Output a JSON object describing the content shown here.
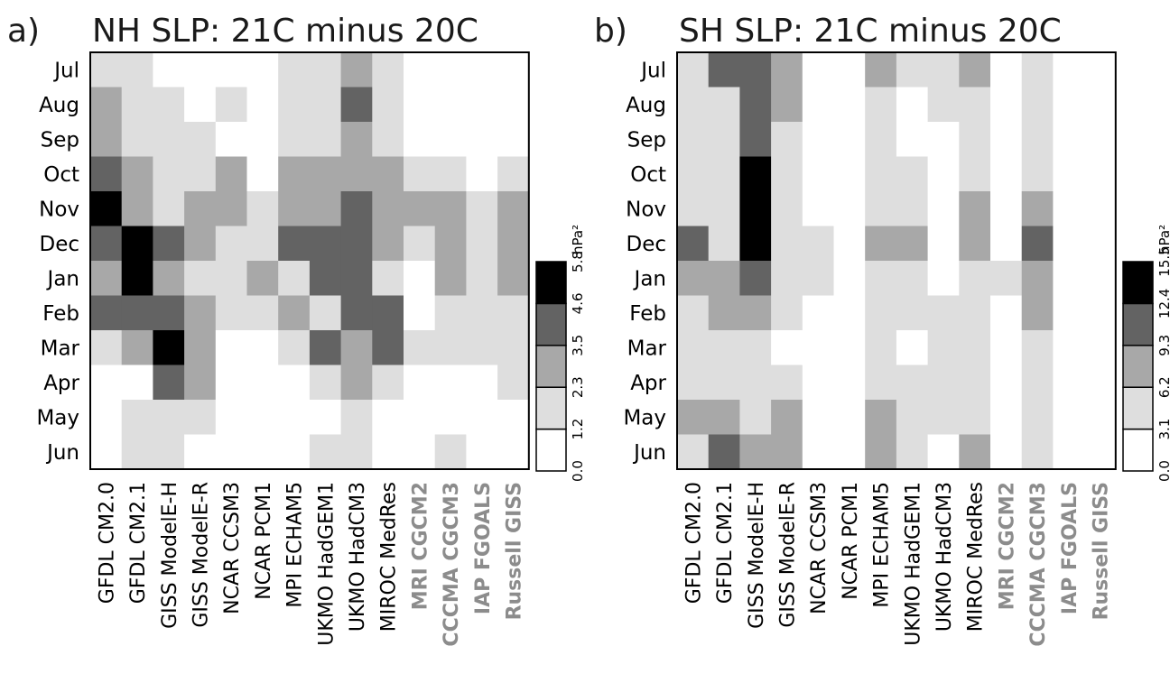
{
  "chart_data": [
    {
      "type": "heatmap",
      "panel_label": "a)",
      "title": "NH SLP: 21C minus 20C",
      "months": [
        "Jul",
        "Aug",
        "Sep",
        "Oct",
        "Nov",
        "Dec",
        "Jan",
        "Feb",
        "Mar",
        "Apr",
        "May",
        "Jun"
      ],
      "models": [
        "GFDL CM2.0",
        "GFDL CM2.1",
        "GISS ModelE-H",
        "GISS ModelE-R",
        "NCAR CCSM3",
        "NCAR PCM1",
        "MPI ECHAM5",
        "UKMO HadGEM1",
        "UKMO HadCM3",
        "MIROC MedRes",
        "MRI CGCM2",
        "CCCMA CGCM3",
        "IAP FGOALS",
        "Russell GISS"
      ],
      "highlighted_models": [
        "MRI CGCM2",
        "CCCMA CGCM3",
        "IAP FGOALS",
        "Russell GISS"
      ],
      "levels": [
        [
          1,
          1,
          0,
          0,
          0,
          0,
          1,
          1,
          2,
          1,
          0,
          0,
          0,
          0
        ],
        [
          2,
          1,
          1,
          0,
          1,
          0,
          1,
          1,
          3,
          1,
          0,
          0,
          0,
          0
        ],
        [
          2,
          1,
          1,
          1,
          0,
          0,
          1,
          1,
          2,
          1,
          0,
          0,
          0,
          0
        ],
        [
          3,
          2,
          1,
          1,
          2,
          0,
          2,
          2,
          2,
          2,
          1,
          1,
          0,
          1
        ],
        [
          4,
          2,
          1,
          2,
          2,
          1,
          2,
          2,
          3,
          2,
          2,
          2,
          1,
          2
        ],
        [
          3,
          4,
          3,
          2,
          1,
          1,
          3,
          3,
          3,
          2,
          1,
          2,
          1,
          2
        ],
        [
          2,
          4,
          2,
          1,
          1,
          2,
          1,
          3,
          3,
          1,
          0,
          2,
          1,
          2
        ],
        [
          3,
          3,
          3,
          2,
          1,
          1,
          2,
          1,
          3,
          3,
          0,
          1,
          1,
          1
        ],
        [
          1,
          2,
          4,
          2,
          0,
          0,
          1,
          3,
          2,
          3,
          1,
          1,
          1,
          1
        ],
        [
          0,
          0,
          3,
          2,
          0,
          0,
          0,
          1,
          2,
          1,
          0,
          0,
          0,
          1
        ],
        [
          0,
          1,
          1,
          1,
          0,
          0,
          0,
          0,
          1,
          0,
          0,
          0,
          0,
          0
        ],
        [
          0,
          1,
          1,
          0,
          0,
          0,
          0,
          1,
          1,
          0,
          0,
          1,
          0,
          0
        ]
      ],
      "colorbar": {
        "ticks": [
          "0.0",
          "1.2",
          "2.3",
          "3.5",
          "4.6",
          "5.8"
        ],
        "unit": "hPa²"
      }
    },
    {
      "type": "heatmap",
      "panel_label": "b)",
      "title": "SH SLP: 21C minus 20C",
      "months": [
        "Jul",
        "Aug",
        "Sep",
        "Oct",
        "Nov",
        "Dec",
        "Jan",
        "Feb",
        "Mar",
        "Apr",
        "May",
        "Jun"
      ],
      "models": [
        "GFDL CM2.0",
        "GFDL CM2.1",
        "GISS ModelE-H",
        "GISS ModelE-R",
        "NCAR CCSM3",
        "NCAR PCM1",
        "MPI ECHAM5",
        "UKMO HadGEM1",
        "UKMO HadCM3",
        "MIROC MedRes",
        "MRI CGCM2",
        "CCCMA CGCM3",
        "IAP FGOALS",
        "Russell GISS"
      ],
      "highlighted_models": [
        "MRI CGCM2",
        "CCCMA CGCM3",
        "IAP FGOALS",
        "Russell GISS"
      ],
      "levels": [
        [
          1,
          3,
          3,
          2,
          0,
          0,
          2,
          1,
          1,
          2,
          0,
          1,
          0,
          0
        ],
        [
          1,
          1,
          3,
          2,
          0,
          0,
          1,
          0,
          1,
          1,
          0,
          1,
          0,
          0
        ],
        [
          1,
          1,
          3,
          1,
          0,
          0,
          1,
          0,
          0,
          1,
          0,
          1,
          0,
          0
        ],
        [
          1,
          1,
          4,
          1,
          0,
          0,
          1,
          1,
          0,
          1,
          0,
          1,
          0,
          0
        ],
        [
          1,
          1,
          4,
          1,
          0,
          0,
          1,
          1,
          0,
          2,
          0,
          2,
          0,
          0
        ],
        [
          3,
          1,
          4,
          1,
          1,
          0,
          2,
          2,
          0,
          2,
          0,
          3,
          0,
          0
        ],
        [
          2,
          2,
          3,
          1,
          1,
          0,
          1,
          1,
          0,
          1,
          1,
          2,
          0,
          0
        ],
        [
          1,
          2,
          2,
          1,
          0,
          0,
          1,
          1,
          1,
          1,
          0,
          2,
          0,
          0
        ],
        [
          1,
          1,
          1,
          0,
          0,
          0,
          1,
          0,
          1,
          1,
          0,
          1,
          0,
          0
        ],
        [
          1,
          1,
          1,
          1,
          0,
          0,
          1,
          1,
          1,
          1,
          0,
          1,
          0,
          0
        ],
        [
          2,
          2,
          1,
          2,
          0,
          0,
          2,
          1,
          1,
          1,
          0,
          1,
          0,
          0
        ],
        [
          1,
          3,
          2,
          2,
          0,
          0,
          2,
          1,
          0,
          2,
          0,
          1,
          0,
          0
        ]
      ],
      "colorbar": {
        "ticks": [
          "0.0",
          "3.1",
          "6.2",
          "9.3",
          "12.4",
          "15.5"
        ],
        "unit": "hPa²"
      }
    }
  ],
  "shade_colors": [
    "#ffffff",
    "#dedede",
    "#a8a8a8",
    "#636363",
    "#000000"
  ],
  "highlight_text_color": "#8c8c8c"
}
